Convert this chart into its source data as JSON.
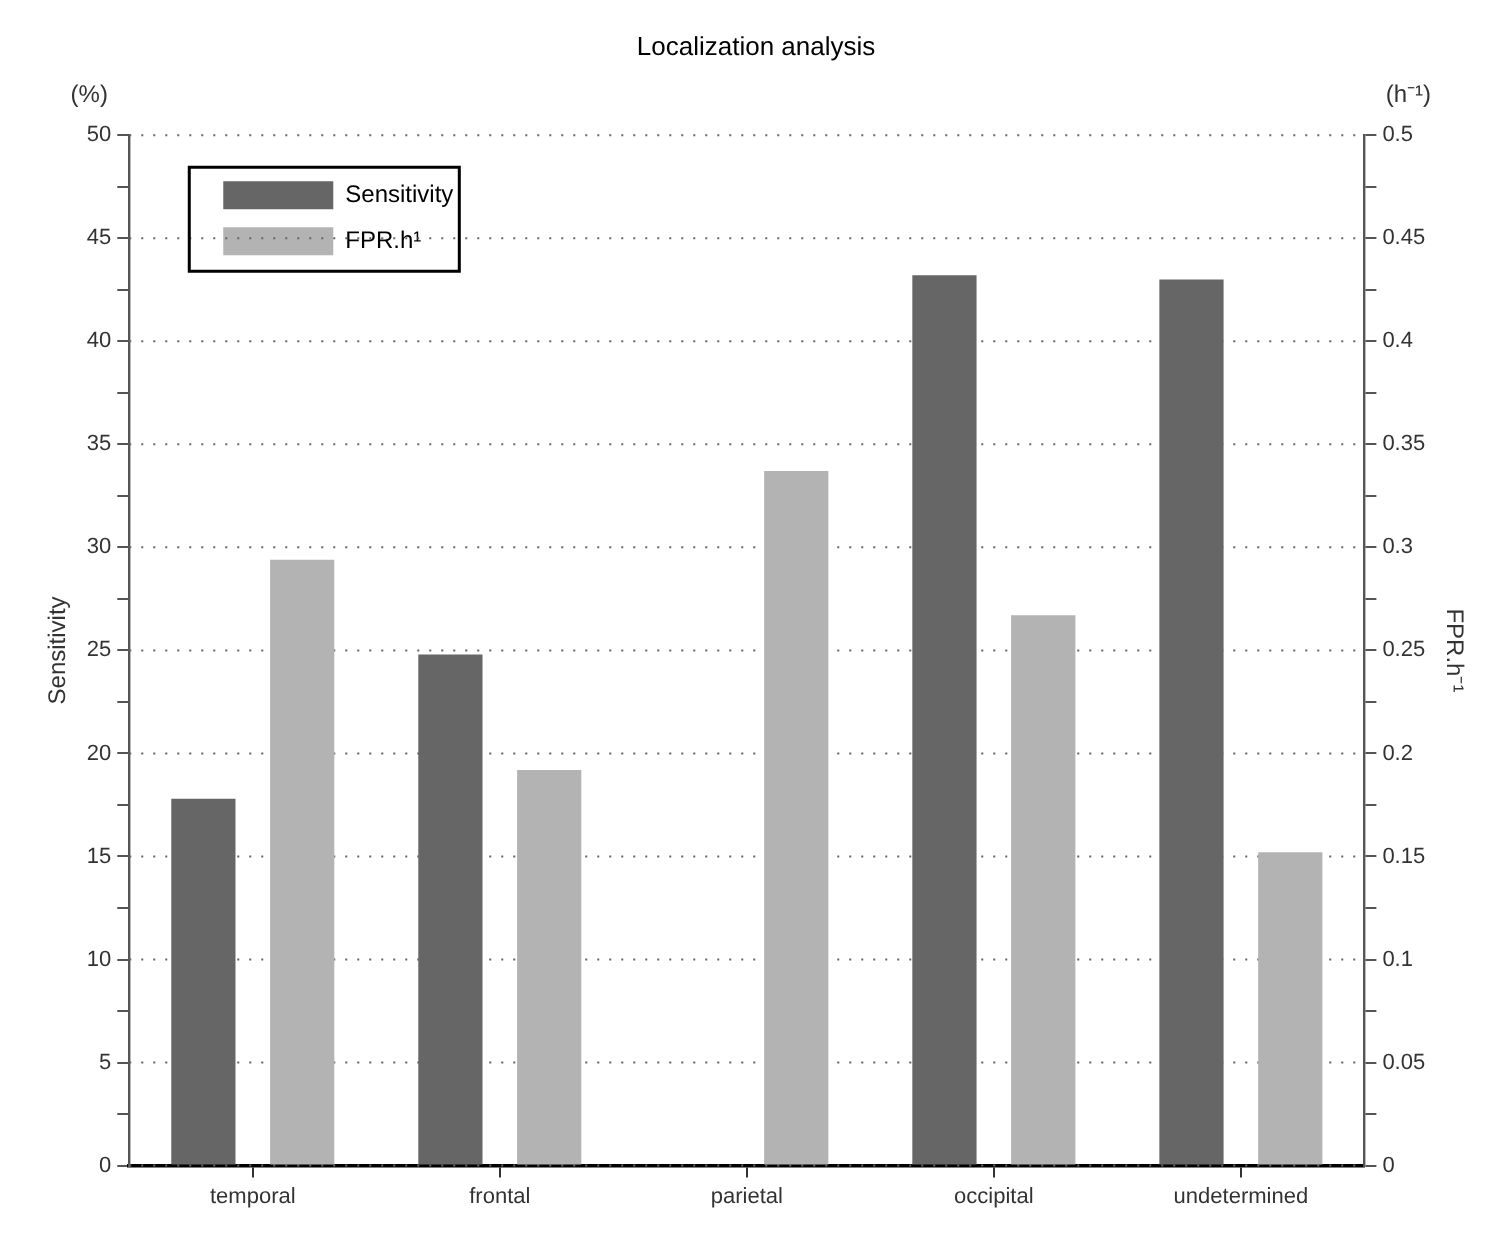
{
  "chart_data": {
    "type": "bar",
    "title": "Localization analysis",
    "ylabel": "Sensitivity",
    "y2label": "FPR.h⁻¹",
    "annotations": [
      "(%)",
      "(h⁻¹)"
    ],
    "categories": [
      "temporal",
      "frontal",
      "parietal",
      "occipital",
      "undetermined"
    ],
    "series": [
      {
        "name": "Sensitivity",
        "color": "#666666",
        "values": [
          17.8,
          24.8,
          0,
          43.2,
          43.0
        ]
      },
      {
        "name": "FPR.h¹",
        "color": "#b3b3b3",
        "axis": "y2",
        "values": [
          0.294,
          0.192,
          0.337,
          0.267,
          0.152
        ]
      }
    ],
    "ylim": [
      0,
      50
    ],
    "yticks": [
      0,
      {
        "value": 2.5,
        "label": null
      },
      5,
      {
        "value": 7.5,
        "label": null
      },
      10,
      {
        "value": 12.5,
        "label": null
      },
      15,
      {
        "value": 17.5,
        "label": null
      },
      20,
      {
        "value": 22.5,
        "label": null
      },
      25,
      {
        "value": 27.5,
        "label": null
      },
      30,
      {
        "value": 32.5,
        "label": null
      },
      35,
      {
        "value": 37.5,
        "label": null
      },
      40,
      {
        "value": 42.5,
        "label": null
      },
      45,
      {
        "value": 47.5,
        "label": null
      },
      50
    ],
    "y2lim": [
      0,
      0.5
    ],
    "y2ticks": [
      0,
      {
        "value": 0.025,
        "label": null
      },
      0.05,
      {
        "value": 0.075,
        "label": null
      },
      0.1,
      {
        "value": 0.125,
        "label": null
      },
      0.15,
      {
        "value": 0.175,
        "label": null
      },
      0.2,
      {
        "value": 0.225,
        "label": null
      },
      0.25,
      {
        "value": 0.275,
        "label": null
      },
      0.3,
      {
        "value": 0.325,
        "label": null
      },
      0.35,
      {
        "value": 0.375,
        "label": null
      },
      0.4,
      {
        "value": 0.425,
        "label": null
      },
      0.45,
      {
        "value": 0.475,
        "label": null
      },
      0.5
    ],
    "grid": "y",
    "legend": "top left"
  }
}
